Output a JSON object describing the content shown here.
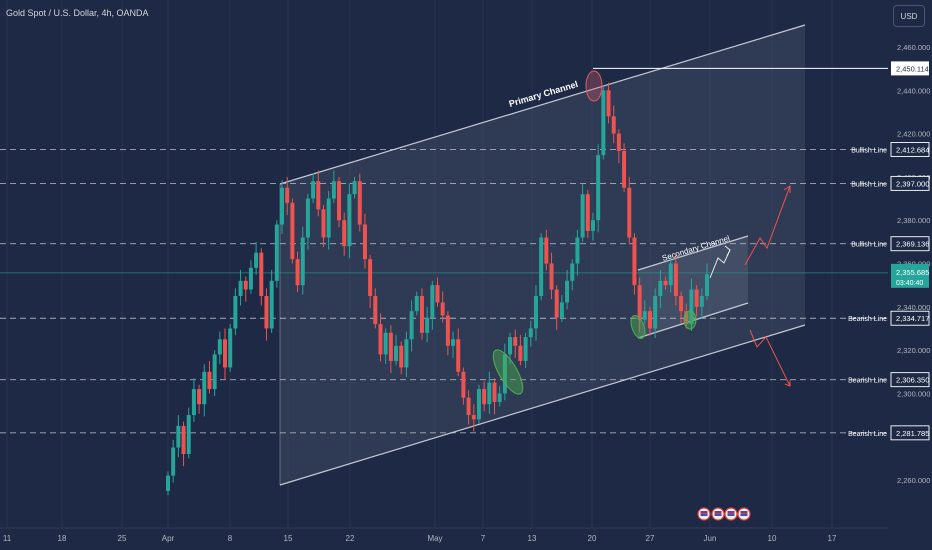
{
  "header": {
    "title": "Gold Spot / U.S. Dollar, 4h, OANDA",
    "currency_label": "USD"
  },
  "colors": {
    "background": "#1e2a45",
    "up_candle": "#26a69a",
    "down_candle": "#ef5350",
    "channel_fill": "#8a93a8",
    "channel_line": "#c4c9d4",
    "level_line": "#c8ccd6",
    "current_price": "#26a69a",
    "green_marker": "#4caf50",
    "red_marker": "#e05a6a"
  },
  "chart_data": {
    "type": "candlestick",
    "symbol": "XAUUSD",
    "timeframe": "4h",
    "x_ticks": [
      "11",
      "18",
      "25",
      "Apr",
      "8",
      "15",
      "22",
      "May",
      "7",
      "13",
      "20",
      "27",
      "Jun",
      "10",
      "17"
    ],
    "y_ticks": [
      "2,460.000",
      "2,440.000",
      "2,420.000",
      "2,400.000",
      "2,380.000",
      "2,360.000",
      "2,340.000",
      "2,320.000",
      "2,300.000",
      "2,260.000"
    ],
    "ylim": [
      2248,
      2476
    ],
    "levels": [
      {
        "name": "",
        "price": 2450.114,
        "label": "2,450.114"
      },
      {
        "name": "Bullish Line",
        "price": 2412.684,
        "label": "2,412.684"
      },
      {
        "name": "Bullish Line",
        "price": 2397.0,
        "label": "2,397.000"
      },
      {
        "name": "Bullish Line",
        "price": 2369.136,
        "label": "2,369.136"
      },
      {
        "name": "Bearish Line",
        "price": 2334.717,
        "label": "2,334.717"
      },
      {
        "name": "Bearish Line",
        "price": 2306.35,
        "label": "2,306.350"
      },
      {
        "name": "Bearish Line",
        "price": 2281.785,
        "label": "2,281.785"
      }
    ],
    "current_price": {
      "price": 2355.685,
      "label": "2,355.685",
      "countdown": "03:40:40"
    },
    "annotations": [
      "Primary Channel",
      "Secondary Channel"
    ],
    "closes": [
      2262,
      2275,
      2285,
      2272,
      2290,
      2302,
      2295,
      2310,
      2302,
      2318,
      2325,
      2312,
      2330,
      2345,
      2352,
      2348,
      2358,
      2365,
      2345,
      2330,
      2352,
      2378,
      2395,
      2388,
      2362,
      2350,
      2372,
      2390,
      2398,
      2385,
      2372,
      2390,
      2398,
      2380,
      2368,
      2392,
      2398,
      2378,
      2362,
      2345,
      2332,
      2318,
      2328,
      2315,
      2322,
      2312,
      2325,
      2338,
      2345,
      2328,
      2335,
      2350,
      2342,
      2336,
      2322,
      2325,
      2310,
      2298,
      2290,
      2288,
      2302,
      2295,
      2305,
      2296,
      2300,
      2318,
      2326,
      2322,
      2315,
      2326,
      2330,
      2345,
      2372,
      2360,
      2348,
      2335,
      2342,
      2352,
      2360,
      2372,
      2392,
      2375,
      2380,
      2410,
      2440,
      2428,
      2420,
      2412,
      2395,
      2372,
      2350,
      2334,
      2338,
      2330,
      2345,
      2352,
      2350,
      2360,
      2345,
      2338,
      2332,
      2348,
      2340,
      2345,
      2355
    ]
  }
}
